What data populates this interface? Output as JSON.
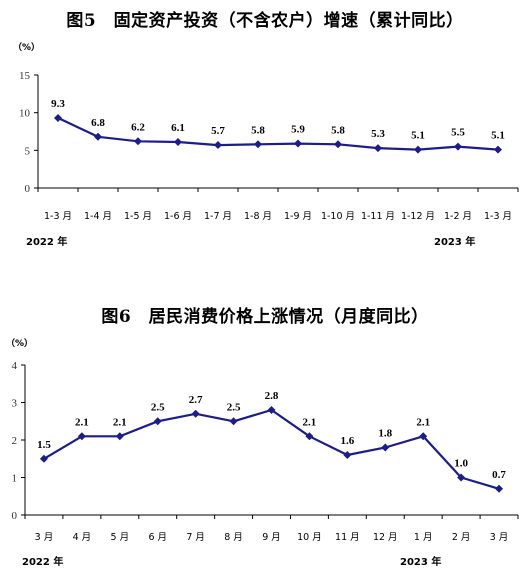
{
  "colors": {
    "line": "#1c1c8a",
    "axis": "#000000"
  },
  "chart_data": [
    {
      "type": "line",
      "title": "图5　固定资产投资（不含农户）增速（累计同比）",
      "unit": "（%）",
      "ylim": [
        0,
        15
      ],
      "yticks": [
        "0",
        "5",
        "10",
        "15"
      ],
      "categories": [
        "1-3 月",
        "1-4 月",
        "1-5 月",
        "1-6 月",
        "1-7 月",
        "1-8 月",
        "1-9 月",
        "1-10 月",
        "1-11 月",
        "1-12 月",
        "1-2 月",
        "1-3 月"
      ],
      "values": [
        9.3,
        6.8,
        6.2,
        6.1,
        5.7,
        5.8,
        5.9,
        5.8,
        5.3,
        5.1,
        5.5,
        5.1
      ],
      "value_labels": [
        "9.3",
        "6.8",
        "6.2",
        "6.1",
        "5.7",
        "5.8",
        "5.9",
        "5.8",
        "5.3",
        "5.1",
        "5.5",
        "5.1"
      ],
      "year_labels": [
        "2022 年",
        "2023 年"
      ]
    },
    {
      "type": "line",
      "title": "图6　居民消费价格上涨情况（月度同比）",
      "unit": "（%）",
      "ylim": [
        0,
        4
      ],
      "yticks": [
        "0",
        "1",
        "2",
        "3",
        "4"
      ],
      "categories": [
        "3 月",
        "4 月",
        "5 月",
        "6 月",
        "7 月",
        "8 月",
        "9 月",
        "10 月",
        "11 月",
        "12 月",
        "1 月",
        "2 月",
        "3 月"
      ],
      "values": [
        1.5,
        2.1,
        2.1,
        2.5,
        2.7,
        2.5,
        2.8,
        2.1,
        1.6,
        1.8,
        2.1,
        1.0,
        0.7
      ],
      "value_labels": [
        "1.5",
        "2.1",
        "2.1",
        "2.5",
        "2.7",
        "2.5",
        "2.8",
        "2.1",
        "1.6",
        "1.8",
        "2.1",
        "1.0",
        "0.7"
      ],
      "year_labels": [
        "2022 年",
        "2023 年"
      ]
    }
  ]
}
